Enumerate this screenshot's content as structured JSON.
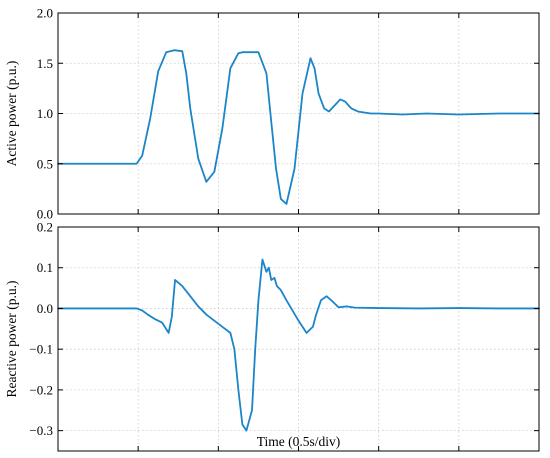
{
  "chart_data": [
    {
      "type": "line",
      "ylabel": "Active power (p.u.)",
      "xlabel": "",
      "xlim": [
        0,
        6
      ],
      "ylim": [
        0,
        2
      ],
      "x_tick_count": 6,
      "yticks": [
        0,
        0.5,
        1.0,
        1.5,
        2.0
      ],
      "ytick_labels": [
        "0.0",
        "0.5",
        "1.0",
        "1.5",
        "2.0"
      ],
      "grid": true,
      "color": "#1a85c8",
      "series": [
        {
          "x": [
            0.0,
            0.5,
            0.98,
            1.05,
            1.15,
            1.25,
            1.35,
            1.45,
            1.55,
            1.6,
            1.65,
            1.75,
            1.85,
            1.95,
            2.05,
            2.15,
            2.25,
            2.3,
            2.4,
            2.5,
            2.6,
            2.66,
            2.72,
            2.78,
            2.85,
            2.95,
            3.05,
            3.15,
            3.2,
            3.25,
            3.32,
            3.38,
            3.45,
            3.52,
            3.58,
            3.66,
            3.74,
            3.82,
            3.9,
            4.0,
            4.3,
            4.6,
            5.0,
            5.5,
            6.0
          ],
          "y": [
            0.5,
            0.5,
            0.5,
            0.58,
            0.95,
            1.42,
            1.61,
            1.63,
            1.62,
            1.4,
            1.05,
            0.55,
            0.32,
            0.42,
            0.85,
            1.45,
            1.6,
            1.61,
            1.61,
            1.61,
            1.4,
            0.92,
            0.45,
            0.15,
            0.1,
            0.45,
            1.2,
            1.55,
            1.45,
            1.2,
            1.05,
            1.02,
            1.08,
            1.14,
            1.12,
            1.05,
            1.02,
            1.01,
            1.0,
            1.0,
            0.99,
            1.0,
            0.99,
            1.0,
            1.0
          ]
        }
      ]
    },
    {
      "type": "line",
      "ylabel": "Reactive power (p.u.)",
      "xlabel": "Time (0.5s/div)",
      "xlim": [
        0,
        6
      ],
      "ylim": [
        -0.35,
        0.2
      ],
      "x_tick_count": 6,
      "yticks": [
        -0.3,
        -0.2,
        -0.1,
        0.0,
        0.1,
        0.2
      ],
      "ytick_labels": [
        "−0.3",
        "−0.2",
        "−0.1",
        "0.0",
        "0.1",
        "0.2"
      ],
      "grid": true,
      "color": "#1a85c8",
      "series": [
        {
          "x": [
            0.0,
            0.5,
            0.98,
            1.05,
            1.12,
            1.2,
            1.3,
            1.38,
            1.42,
            1.46,
            1.55,
            1.65,
            1.75,
            1.85,
            1.95,
            2.05,
            2.15,
            2.2,
            2.25,
            2.3,
            2.35,
            2.42,
            2.46,
            2.5,
            2.55,
            2.6,
            2.63,
            2.66,
            2.7,
            2.73,
            2.78,
            2.85,
            3.0,
            3.1,
            3.18,
            3.22,
            3.28,
            3.35,
            3.42,
            3.5,
            3.6,
            3.7,
            4.0,
            4.5,
            5.0,
            5.5,
            6.0
          ],
          "y": [
            0.0,
            0.0,
            0.0,
            -0.005,
            -0.015,
            -0.025,
            -0.035,
            -0.06,
            -0.02,
            0.07,
            0.055,
            0.03,
            0.005,
            -0.015,
            -0.03,
            -0.045,
            -0.06,
            -0.1,
            -0.2,
            -0.285,
            -0.3,
            -0.25,
            -0.1,
            0.02,
            0.12,
            0.09,
            0.1,
            0.07,
            0.075,
            0.055,
            0.045,
            0.02,
            -0.03,
            -0.06,
            -0.045,
            -0.015,
            0.02,
            0.03,
            0.018,
            0.003,
            0.005,
            0.002,
            0.001,
            0.0,
            0.001,
            0.0,
            0.0
          ]
        }
      ]
    }
  ]
}
